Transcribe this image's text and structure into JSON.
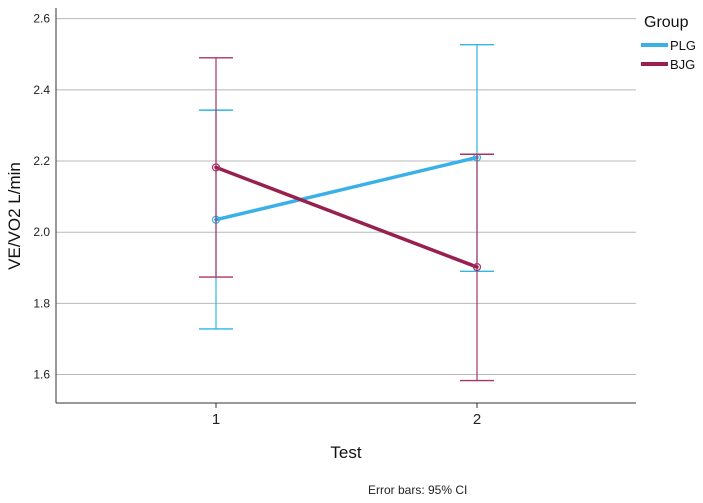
{
  "chart_data": {
    "type": "line",
    "xlabel": "Test",
    "ylabel": "VE/VO2 L/min",
    "categories": [
      "1",
      "2"
    ],
    "ylim": [
      1.52,
      2.63
    ],
    "yticks": [
      "1.6",
      "1.8",
      "2.0",
      "2.2",
      "2.4",
      "2.6"
    ],
    "grid": true,
    "legend": {
      "title": "Group",
      "placement": "top-right"
    },
    "series": [
      {
        "name": "PLG",
        "color": "#3db2ea",
        "values": [
          2.035,
          2.21
        ],
        "ci_low": [
          1.728,
          1.89
        ],
        "ci_high": [
          2.343,
          2.527
        ]
      },
      {
        "name": "BJG",
        "color": "#98204f",
        "values": [
          2.182,
          1.902
        ],
        "ci_low": [
          1.874,
          1.583
        ],
        "ci_high": [
          2.49,
          2.219
        ]
      }
    ],
    "footnote": "Error bars: 95% CI"
  }
}
